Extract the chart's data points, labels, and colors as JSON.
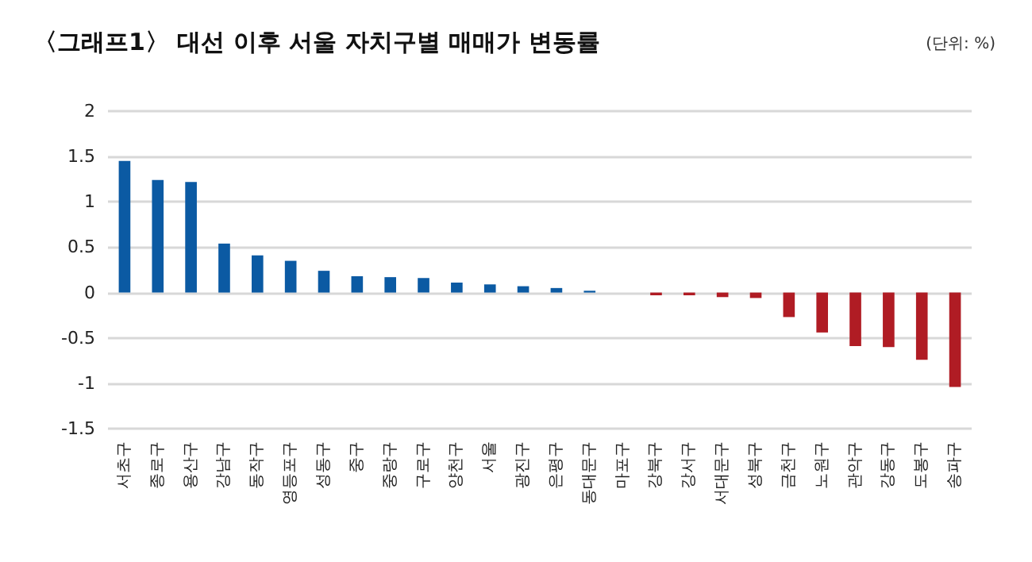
{
  "chart_data": {
    "type": "bar",
    "title": "〈그래프1〉 대선 이후 서울 자치구별 매매가 변동률",
    "subtitle": "(단위: %)",
    "categories": [
      "서초구",
      "종로구",
      "용산구",
      "강남구",
      "동작구",
      "영등포구",
      "성동구",
      "중구",
      "중랑구",
      "구로구",
      "양천구",
      "서울",
      "광진구",
      "은평구",
      "동대문구",
      "마포구",
      "강북구",
      "강서구",
      "서대문구",
      "성북구",
      "금천구",
      "노원구",
      "관악구",
      "강동구",
      "도봉구",
      "송파구"
    ],
    "values": [
      1.45,
      1.24,
      1.22,
      0.54,
      0.41,
      0.35,
      0.24,
      0.18,
      0.17,
      0.16,
      0.11,
      0.09,
      0.07,
      0.05,
      0.02,
      0,
      -0.03,
      -0.03,
      -0.05,
      -0.06,
      -0.27,
      -0.44,
      -0.59,
      -0.6,
      -0.74,
      -1.04
    ],
    "colors": [
      "#0b5aa3",
      "#0b5aa3",
      "#0b5aa3",
      "#0b5aa3",
      "#0b5aa3",
      "#0b5aa3",
      "#0b5aa3",
      "#0b5aa3",
      "#0b5aa3",
      "#0b5aa3",
      "#0b5aa3",
      "#0b5aa3",
      "#0b5aa3",
      "#0b5aa3",
      "#0b5aa3",
      "#0b5aa3",
      "#b01c24",
      "#b01c24",
      "#b01c24",
      "#b01c24",
      "#b01c24",
      "#b01c24",
      "#b01c24",
      "#b01c24",
      "#b01c24",
      "#b01c24"
    ],
    "ylim": [
      -1.5,
      2
    ],
    "yticks": [
      -1.5,
      -1,
      -0.5,
      0,
      0.5,
      1,
      1.5,
      2
    ],
    "grid": "y"
  }
}
